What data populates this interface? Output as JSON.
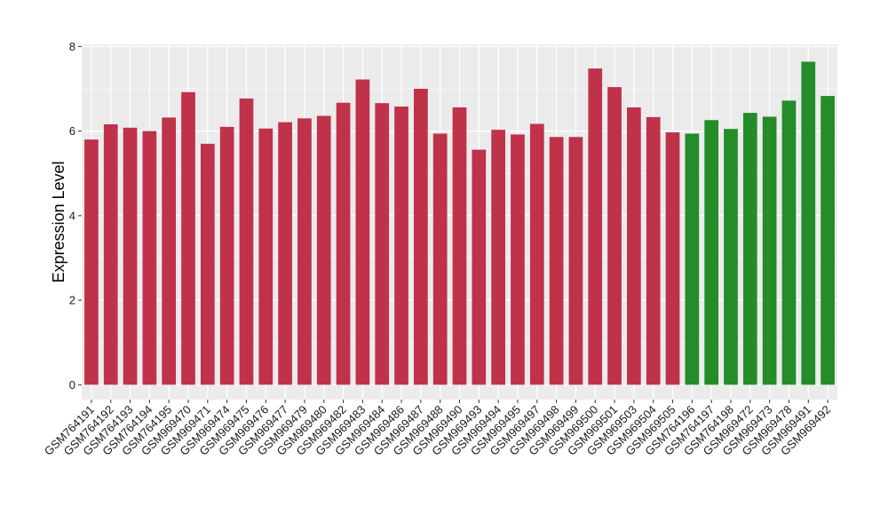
{
  "chart_data": {
    "type": "bar",
    "title": "",
    "xlabel": "",
    "ylabel": "Expression Level",
    "ylim": [
      -0.35,
      8.05
    ],
    "yticks": [
      0,
      2,
      4,
      6,
      8
    ],
    "grid": true,
    "legend": "none",
    "colors": {
      "red": "#c0314a",
      "green": "#248c28",
      "panel": "#ebebeb",
      "grid": "#ffffff"
    },
    "categories": [
      "GSM764191",
      "GSM764192",
      "GSM764193",
      "GSM764194",
      "GSM764195",
      "GSM969470",
      "GSM969471",
      "GSM969474",
      "GSM969475",
      "GSM969476",
      "GSM969477",
      "GSM969479",
      "GSM969480",
      "GSM969482",
      "GSM969483",
      "GSM969484",
      "GSM969486",
      "GSM969487",
      "GSM969488",
      "GSM969490",
      "GSM969493",
      "GSM969494",
      "GSM969495",
      "GSM969497",
      "GSM969498",
      "GSM969499",
      "GSM969500",
      "GSM969501",
      "GSM969503",
      "GSM969504",
      "GSM969505",
      "GSM764196",
      "GSM764197",
      "GSM764198",
      "GSM969472",
      "GSM969473",
      "GSM969478",
      "GSM969491",
      "GSM969492"
    ],
    "values": [
      5.8,
      6.16,
      6.08,
      6.0,
      6.32,
      6.92,
      5.7,
      6.1,
      6.77,
      6.06,
      6.21,
      6.3,
      6.36,
      6.67,
      7.22,
      6.66,
      6.58,
      7.0,
      5.94,
      6.56,
      5.56,
      6.03,
      5.92,
      6.17,
      5.86,
      5.86,
      7.48,
      7.04,
      6.56,
      6.33,
      5.97,
      5.94,
      6.26,
      6.05,
      6.43,
      6.34,
      6.72,
      7.64,
      6.83
    ],
    "bar_colors": [
      "red",
      "red",
      "red",
      "red",
      "red",
      "red",
      "red",
      "red",
      "red",
      "red",
      "red",
      "red",
      "red",
      "red",
      "red",
      "red",
      "red",
      "red",
      "red",
      "red",
      "red",
      "red",
      "red",
      "red",
      "red",
      "red",
      "red",
      "red",
      "red",
      "red",
      "red",
      "green",
      "green",
      "green",
      "green",
      "green",
      "green",
      "green",
      "green"
    ]
  }
}
